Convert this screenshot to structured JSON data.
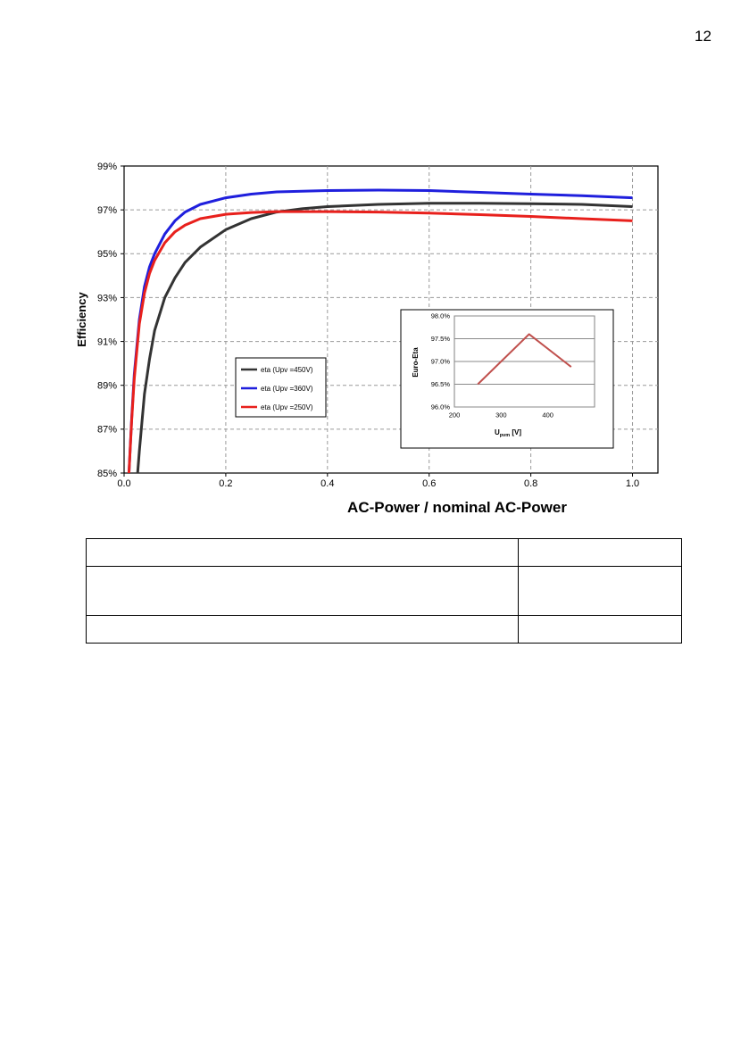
{
  "page": {
    "number": "12"
  },
  "chart_data": [
    {
      "type": "line",
      "title": "",
      "xlabel": "AC-Power / nominal AC-Power",
      "ylabel": "Efficiency",
      "xlim": [
        0.0,
        1.05
      ],
      "ylim": [
        85,
        99
      ],
      "xticks": [
        0.0,
        0.2,
        0.4,
        0.6,
        0.8,
        1.0
      ],
      "xtick_labels": [
        "0.0",
        "0.2",
        "0.4",
        "0.6",
        "0.8",
        "1.0"
      ],
      "yticks": [
        85,
        87,
        89,
        91,
        93,
        95,
        97,
        99
      ],
      "ytick_labels": [
        "85%",
        "87%",
        "89%",
        "91%",
        "93%",
        "95%",
        "97%",
        "99%"
      ],
      "grid": true,
      "legend_position": "left-middle",
      "series": [
        {
          "name": "eta (Upv =450V)",
          "color": "#333333",
          "x": [
            0.02,
            0.025,
            0.03,
            0.04,
            0.05,
            0.06,
            0.08,
            0.1,
            0.12,
            0.15,
            0.2,
            0.25,
            0.3,
            0.35,
            0.4,
            0.5,
            0.6,
            0.7,
            0.8,
            0.9,
            1.0
          ],
          "y": [
            83.0,
            84.5,
            86.0,
            88.6,
            90.2,
            91.5,
            93.0,
            93.9,
            94.6,
            95.3,
            96.1,
            96.6,
            96.9,
            97.05,
            97.15,
            97.25,
            97.3,
            97.3,
            97.28,
            97.25,
            97.15
          ]
        },
        {
          "name": "eta (Upv =360V)",
          "color": "#1f1fdd",
          "x": [
            0.005,
            0.01,
            0.015,
            0.02,
            0.03,
            0.04,
            0.05,
            0.06,
            0.08,
            0.1,
            0.12,
            0.15,
            0.2,
            0.25,
            0.3,
            0.4,
            0.5,
            0.6,
            0.7,
            0.8,
            0.9,
            1.0
          ],
          "y": [
            83.0,
            85.2,
            87.5,
            89.5,
            92.0,
            93.5,
            94.4,
            95.0,
            95.9,
            96.5,
            96.9,
            97.25,
            97.55,
            97.72,
            97.82,
            97.88,
            97.9,
            97.88,
            97.8,
            97.72,
            97.65,
            97.55
          ]
        },
        {
          "name": "eta (Upv =250V)",
          "color": "#e8201c",
          "x": [
            0.005,
            0.01,
            0.015,
            0.02,
            0.03,
            0.04,
            0.05,
            0.06,
            0.08,
            0.1,
            0.12,
            0.15,
            0.2,
            0.25,
            0.3,
            0.4,
            0.5,
            0.6,
            0.7,
            0.8,
            0.9,
            1.0
          ],
          "y": [
            83.0,
            85.2,
            87.4,
            89.3,
            91.8,
            93.2,
            94.1,
            94.7,
            95.5,
            96.0,
            96.3,
            96.6,
            96.8,
            96.88,
            96.92,
            96.92,
            96.9,
            96.85,
            96.78,
            96.7,
            96.6,
            96.5
          ]
        }
      ]
    },
    {
      "type": "line",
      "title": "",
      "xlabel": "U",
      "xlabel_subscript": "pvm",
      "xlabel_unit": " [V]",
      "ylabel": "Euro-Eta",
      "xlim": [
        200,
        500
      ],
      "ylim": [
        96.0,
        98.0
      ],
      "xticks": [
        200,
        300,
        400
      ],
      "xtick_labels": [
        "200",
        "300",
        "400"
      ],
      "yticks": [
        96.0,
        96.5,
        97.0,
        97.5,
        98.0
      ],
      "ytick_labels": [
        "96.0%",
        "96.5%",
        "97.0%",
        "97.5%",
        "98.0%"
      ],
      "grid": true,
      "series": [
        {
          "color": "#c0504d",
          "x": [
            250,
            360,
            450
          ],
          "y": [
            96.5,
            97.6,
            96.88
          ]
        }
      ]
    }
  ]
}
